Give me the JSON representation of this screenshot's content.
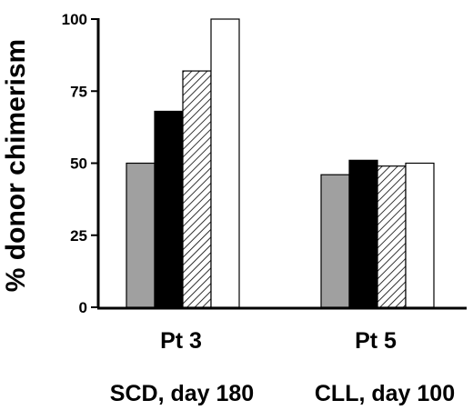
{
  "chart_data": {
    "type": "bar",
    "title": "",
    "xlabel": "",
    "ylabel": "% donor chimerism",
    "ylim": [
      0,
      100
    ],
    "yticks": [
      "0",
      "25",
      "50",
      "75",
      "100"
    ],
    "grid": false,
    "legend": "none",
    "categories": [
      "Pt 3",
      "Pt 5"
    ],
    "category_sublabels": [
      "SCD, day 180",
      "CLL, day 100"
    ],
    "series": [
      {
        "fill": "gray",
        "color": "#a0a0a0",
        "values": [
          50,
          46
        ]
      },
      {
        "fill": "solid",
        "color": "#000000",
        "values": [
          68,
          51
        ]
      },
      {
        "fill": "hatched",
        "color": "#000000",
        "values": [
          82,
          49
        ]
      },
      {
        "fill": "open",
        "color": "#ffffff",
        "values": [
          100,
          50
        ]
      }
    ]
  }
}
